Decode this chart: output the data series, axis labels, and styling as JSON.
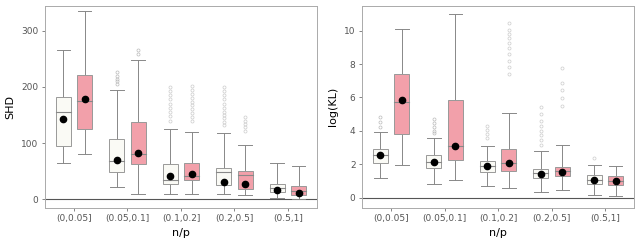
{
  "categories": [
    "(0,0.05]",
    "(0.05,0.1]",
    "(0.1,0.2]",
    "(0.2,0.5]",
    "(0.5,1]"
  ],
  "xlabel": "n/p",
  "shd": {
    "ylabel": "SHD",
    "ylim": [
      -15,
      345
    ],
    "yticks": [
      0,
      100,
      200,
      300
    ],
    "white_boxes": [
      {
        "q1": 95,
        "median": 155,
        "q3": 182,
        "whislo": 65,
        "whishi": 265,
        "mean": 143,
        "fliers": []
      },
      {
        "q1": 48,
        "median": 68,
        "q3": 107,
        "whislo": 22,
        "whishi": 195,
        "mean": 70,
        "fliers": [
          205,
          210,
          215,
          220,
          226
        ]
      },
      {
        "q1": 28,
        "median": 35,
        "q3": 62,
        "whislo": 10,
        "whishi": 125,
        "mean": 42,
        "fliers": [
          140,
          148,
          155,
          162,
          170,
          178,
          185,
          193,
          200
        ]
      },
      {
        "q1": 25,
        "median": 48,
        "q3": 56,
        "whislo": 10,
        "whishi": 118,
        "mean": 30,
        "fliers": [
          132,
          138,
          144,
          150,
          156,
          163,
          170,
          178,
          185,
          192,
          200
        ]
      },
      {
        "q1": 12,
        "median": 20,
        "q3": 28,
        "whislo": 3,
        "whishi": 65,
        "mean": 16,
        "fliers": []
      }
    ],
    "pink_boxes": [
      {
        "q1": 125,
        "median": 175,
        "q3": 222,
        "whislo": 80,
        "whishi": 335,
        "mean": 178,
        "fliers": []
      },
      {
        "q1": 62,
        "median": 80,
        "q3": 138,
        "whislo": 10,
        "whishi": 248,
        "mean": 83,
        "fliers": [
          258,
          265
        ]
      },
      {
        "q1": 35,
        "median": 42,
        "q3": 65,
        "whislo": 10,
        "whishi": 120,
        "mean": 45,
        "fliers": [
          140,
          147,
          153,
          160,
          167,
          174,
          180,
          187,
          195,
          202
        ]
      },
      {
        "q1": 18,
        "median": 44,
        "q3": 50,
        "whislo": 7,
        "whishi": 96,
        "mean": 28,
        "fliers": [
          122,
          128,
          134,
          140,
          147
        ]
      },
      {
        "q1": 8,
        "median": 14,
        "q3": 23,
        "whislo": 1,
        "whishi": 60,
        "mean": 11,
        "fliers": []
      }
    ]
  },
  "kl": {
    "ylabel": "log(KL)",
    "ylim": [
      -0.6,
      11.5
    ],
    "yticks": [
      0,
      2,
      4,
      6,
      8,
      10
    ],
    "white_boxes": [
      {
        "q1": 2.1,
        "median": 2.55,
        "q3": 2.9,
        "whislo": 1.2,
        "whishi": 3.9,
        "mean": 2.55,
        "fliers": [
          4.2,
          4.5,
          4.85
        ]
      },
      {
        "q1": 1.8,
        "median": 2.15,
        "q3": 2.55,
        "whislo": 0.8,
        "whishi": 3.55,
        "mean": 2.15,
        "fliers": [
          3.85,
          4.0,
          4.2,
          4.45,
          4.7
        ]
      },
      {
        "q1": 1.55,
        "median": 1.88,
        "q3": 2.18,
        "whislo": 0.7,
        "whishi": 3.12,
        "mean": 1.92,
        "fliers": [
          3.55,
          3.78,
          4.05,
          4.3
        ]
      },
      {
        "q1": 1.18,
        "median": 1.48,
        "q3": 1.7,
        "whislo": 0.35,
        "whishi": 2.8,
        "mean": 1.4,
        "fliers": [
          3.15,
          3.45,
          3.72,
          4.0,
          4.3,
          4.6,
          5.0,
          5.4
        ]
      },
      {
        "q1": 0.82,
        "median": 1.08,
        "q3": 1.33,
        "whislo": 0.18,
        "whishi": 1.98,
        "mean": 1.03,
        "fliers": [
          2.38
        ]
      }
    ],
    "pink_boxes": [
      {
        "q1": 3.8,
        "median": 5.75,
        "q3": 7.38,
        "whislo": 1.95,
        "whishi": 10.1,
        "mean": 5.85,
        "fliers": []
      },
      {
        "q1": 2.25,
        "median": 3.08,
        "q3": 5.82,
        "whislo": 1.05,
        "whishi": 11.0,
        "mean": 3.08,
        "fliers": []
      },
      {
        "q1": 1.62,
        "median": 2.08,
        "q3": 2.92,
        "whislo": 0.55,
        "whishi": 5.05,
        "mean": 2.1,
        "fliers": [
          7.4,
          7.8,
          8.2,
          8.6,
          8.95,
          9.25,
          9.55,
          9.8,
          10.05,
          10.45
        ]
      },
      {
        "q1": 1.28,
        "median": 1.62,
        "q3": 1.85,
        "whislo": 0.45,
        "whishi": 3.18,
        "mean": 1.52,
        "fliers": [
          5.5,
          5.95,
          6.42,
          6.88,
          7.78
        ]
      },
      {
        "q1": 0.78,
        "median": 1.02,
        "q3": 1.28,
        "whislo": 0.08,
        "whishi": 1.88,
        "mean": 0.98,
        "fliers": []
      }
    ]
  },
  "white_color": "#FAFAF5",
  "pink_color": "#F2A0AA",
  "box_edge_color": "#999999",
  "median_color": "#888888",
  "whisker_color": "#888888",
  "flier_color_shd_early": "#BBBBBB",
  "flier_color_shd_late": "#CCCCCC",
  "flier_color_kl_early": "#BBBBBB",
  "flier_color_kl_late": "#CCCCCC",
  "mean_color": "#000000",
  "zero_line_color": "#555555",
  "background_color": "#FFFFFF",
  "spine_color": "#AAAAAA"
}
